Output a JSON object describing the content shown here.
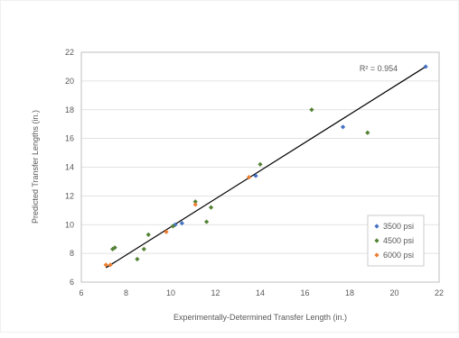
{
  "chart_data": {
    "type": "scatter",
    "title": "",
    "xlabel": "Experimentally-Determined  Transfer Length (in.)",
    "ylabel": "Predicted Transfer Lengths (in.)",
    "xlim": [
      6,
      22
    ],
    "ylim": [
      6,
      22
    ],
    "x_ticks": [
      6,
      8,
      10,
      12,
      14,
      16,
      18,
      20,
      22
    ],
    "y_ticks": [
      6,
      8,
      10,
      12,
      14,
      16,
      18,
      20,
      22
    ],
    "x_tick_labels": [
      "6",
      "8",
      "10",
      "12",
      "14",
      "16",
      "18",
      "20",
      "22"
    ],
    "y_tick_labels": [
      "6",
      "8",
      "10",
      "12",
      "14",
      "16",
      "18",
      "20",
      "22"
    ],
    "grid": "horizontal",
    "legend_position": "bottom-right",
    "annotation": "R² = 0.954",
    "trendline": {
      "x": [
        7.1,
        21.4
      ],
      "y": [
        7.0,
        21.0
      ]
    },
    "series": [
      {
        "name": "3500 psi",
        "color": "#4472c4",
        "points": [
          [
            10.2,
            10.0
          ],
          [
            10.5,
            10.1
          ],
          [
            13.8,
            13.4
          ],
          [
            17.7,
            16.8
          ],
          [
            21.4,
            21.0
          ]
        ]
      },
      {
        "name": "4500 psi",
        "color": "#548235",
        "points": [
          [
            7.4,
            8.3
          ],
          [
            7.5,
            8.4
          ],
          [
            8.5,
            7.6
          ],
          [
            8.8,
            8.3
          ],
          [
            9.0,
            9.3
          ],
          [
            10.1,
            9.9
          ],
          [
            11.1,
            11.6
          ],
          [
            11.6,
            10.2
          ],
          [
            11.8,
            11.2
          ],
          [
            14.0,
            14.2
          ],
          [
            16.3,
            18.0
          ],
          [
            18.8,
            16.4
          ]
        ]
      },
      {
        "name": "6000 psi",
        "color": "#ed7d31",
        "points": [
          [
            7.1,
            7.2
          ],
          [
            7.3,
            7.2
          ],
          [
            9.8,
            9.5
          ],
          [
            11.1,
            11.4
          ],
          [
            13.5,
            13.3
          ]
        ]
      }
    ]
  }
}
